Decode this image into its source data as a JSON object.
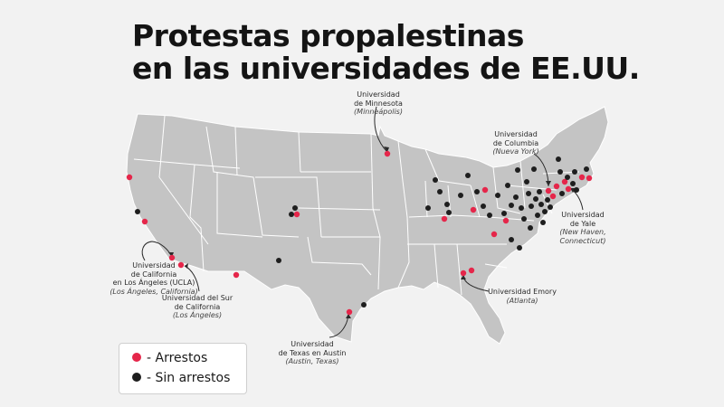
{
  "title": {
    "line1": "Protestas propalestinas",
    "line2": "en las universidades de EE.UU."
  },
  "colors": {
    "arrest": "#e5264a",
    "no_arrest": "#1e1e1e",
    "land": "#c4c4c4",
    "border": "#ffffff",
    "background": "#f2f2f2"
  },
  "legend": {
    "arrest_label": "- Arrestos",
    "no_arrest_label": "- Sin arrestos"
  },
  "labels": {
    "minnesota": {
      "name1": "Universidad",
      "name2": "de Minnesota",
      "city": "(Minneápolis)"
    },
    "columbia": {
      "name1": "Universidad",
      "name2": "de Columbia",
      "city": "(Nueva York)"
    },
    "ucla": {
      "name1": "Universidad",
      "name2": "de California",
      "name3": "en Los Ángeles (UCLA)",
      "city": "(Los Ángeles, California)"
    },
    "usc": {
      "name1": "Universidad del Sur",
      "name2": "de California",
      "city": "(Los Ángeles)"
    },
    "yale": {
      "name1": "Universidad",
      "name2": "de Yale",
      "city1": "(New Haven,",
      "city2": "Connecticut)"
    },
    "emory": {
      "name1": "Universidad Emory",
      "city": "(Atlanta)"
    },
    "texas": {
      "name1": "Universidad",
      "name2": "de Texas en Austin",
      "city": "(Austin, Texas)"
    }
  }
}
